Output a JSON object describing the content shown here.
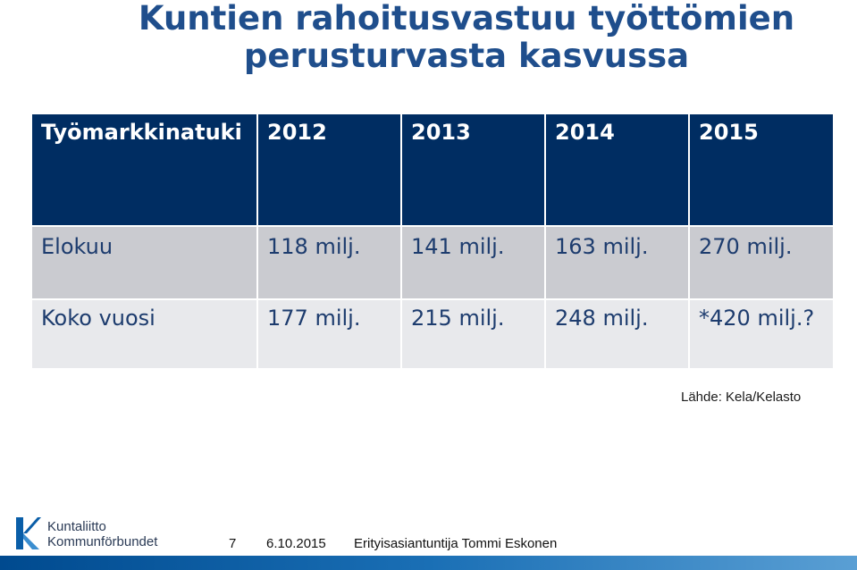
{
  "slide": {
    "title_line1": "Kuntien rahoitusvastuu työttömien",
    "title_line2": "perusturvasta kasvussa"
  },
  "table": {
    "headers": [
      "Työmarkkinatuki",
      "2012",
      "2013",
      "2014",
      "2015"
    ],
    "rows": [
      [
        "Elokuu",
        "118 milj.",
        "141 milj.",
        "163 milj.",
        "270 milj."
      ],
      [
        "Koko vuosi",
        "177 milj.",
        "215 milj.",
        "248 milj.",
        "*420 milj.?"
      ]
    ]
  },
  "source": "Lähde: Kela/Kelasto",
  "logo": {
    "line1": "Kuntaliitto",
    "line2": "Kommunförbundet"
  },
  "footer": {
    "page": "7",
    "date": "6.10.2015",
    "author": "Erityisasiantuntija Tommi Eskonen"
  },
  "colors": {
    "title": "#1f4e8c",
    "header_bg": "#002d62",
    "row1_bg": "#cacbd0",
    "row2_bg": "#e8e9ec",
    "cell_text": "#1d3c6e"
  }
}
